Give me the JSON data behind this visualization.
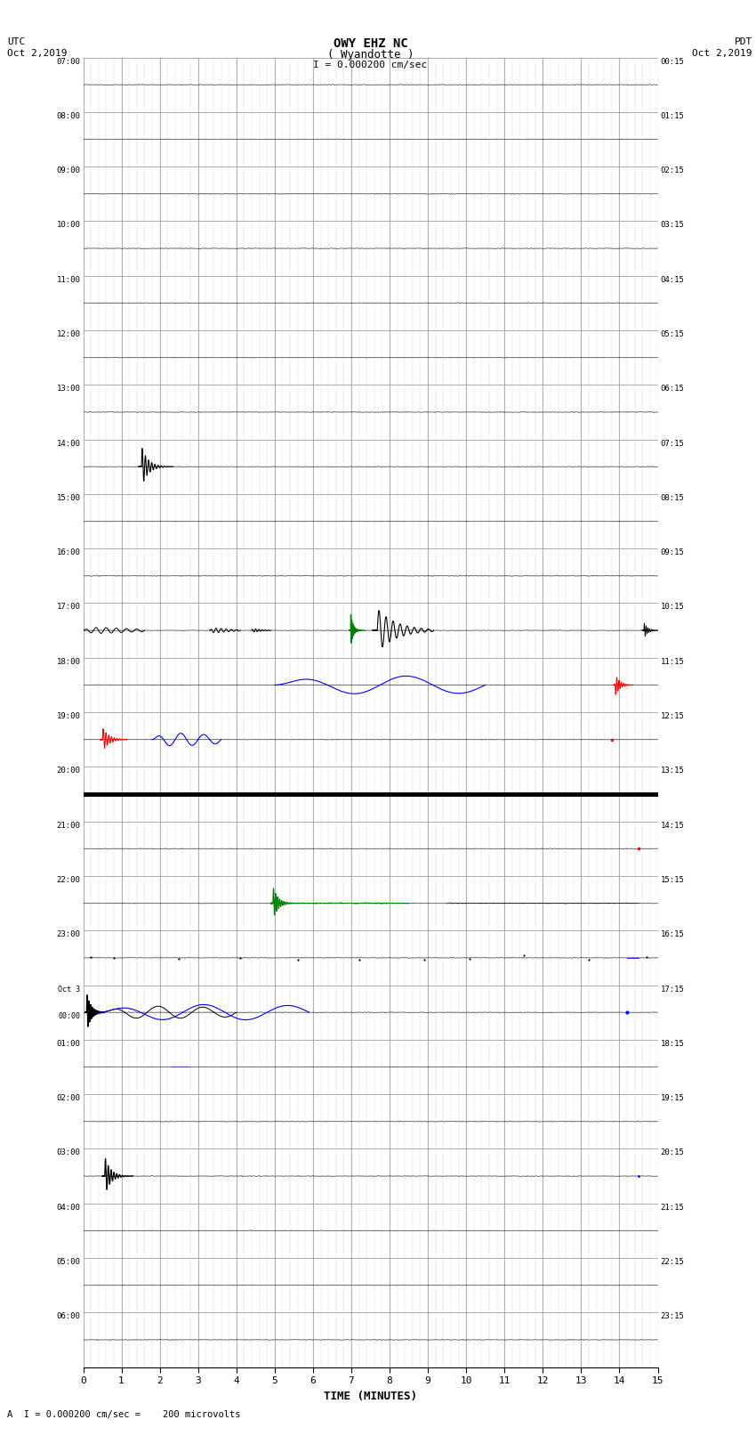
{
  "title_line1": "OWY EHZ NC",
  "title_line2": "( Wyandotte )",
  "scale_label": "I = 0.000200 cm/sec",
  "utc_label1": "UTC",
  "utc_label2": "Oct 2,2019",
  "pdt_label1": "PDT",
  "pdt_label2": "Oct 2,2019",
  "xlabel": "TIME (MINUTES)",
  "footer": "A  I = 0.000200 cm/sec =    200 microvolts",
  "xlim": [
    0,
    15
  ],
  "xticks": [
    0,
    1,
    2,
    3,
    4,
    5,
    6,
    7,
    8,
    9,
    10,
    11,
    12,
    13,
    14,
    15
  ],
  "background_color": "#ffffff",
  "grid_major_color": "#888888",
  "grid_minor_color": "#cccccc",
  "num_rows": 24,
  "utc_times_left": [
    "07:00",
    "08:00",
    "09:00",
    "10:00",
    "11:00",
    "12:00",
    "13:00",
    "14:00",
    "15:00",
    "16:00",
    "17:00",
    "18:00",
    "19:00",
    "20:00",
    "21:00",
    "22:00",
    "23:00",
    "Oct 3\n00:00",
    "01:00",
    "02:00",
    "03:00",
    "04:00",
    "05:00",
    "06:00"
  ],
  "pdt_times_right": [
    "00:15",
    "01:15",
    "02:15",
    "03:15",
    "04:15",
    "05:15",
    "06:15",
    "07:15",
    "08:15",
    "09:15",
    "10:15",
    "11:15",
    "12:15",
    "13:15",
    "14:15",
    "15:15",
    "16:15",
    "17:15",
    "18:15",
    "19:15",
    "20:15",
    "21:15",
    "22:15",
    "23:15"
  ]
}
